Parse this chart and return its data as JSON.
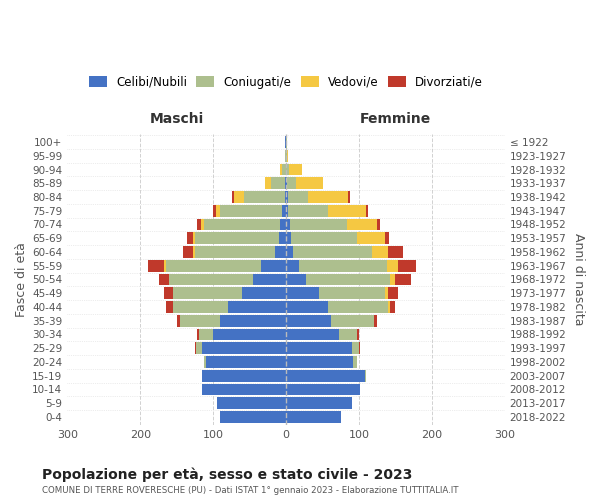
{
  "age_groups": [
    "0-4",
    "5-9",
    "10-14",
    "15-19",
    "20-24",
    "25-29",
    "30-34",
    "35-39",
    "40-44",
    "45-49",
    "50-54",
    "55-59",
    "60-64",
    "65-69",
    "70-74",
    "75-79",
    "80-84",
    "85-89",
    "90-94",
    "95-99",
    "100+"
  ],
  "birth_years": [
    "2018-2022",
    "2013-2017",
    "2008-2012",
    "2003-2007",
    "1998-2002",
    "1993-1997",
    "1988-1992",
    "1983-1987",
    "1978-1982",
    "1973-1977",
    "1968-1972",
    "1963-1967",
    "1958-1962",
    "1953-1957",
    "1948-1952",
    "1943-1947",
    "1938-1942",
    "1933-1937",
    "1928-1932",
    "1923-1927",
    "≤ 1922"
  ],
  "males_celibi": [
    90,
    95,
    115,
    115,
    110,
    115,
    100,
    90,
    80,
    60,
    45,
    35,
    15,
    10,
    8,
    5,
    2,
    1,
    0,
    0,
    1
  ],
  "males_coniugati": [
    0,
    0,
    0,
    0,
    2,
    8,
    20,
    55,
    75,
    95,
    115,
    130,
    110,
    115,
    105,
    85,
    55,
    20,
    5,
    1,
    0
  ],
  "males_vedovi": [
    0,
    0,
    0,
    0,
    0,
    0,
    0,
    0,
    0,
    0,
    1,
    2,
    2,
    3,
    4,
    6,
    15,
    8,
    3,
    0,
    0
  ],
  "males_divorziati": [
    0,
    0,
    0,
    0,
    0,
    2,
    2,
    5,
    10,
    12,
    13,
    22,
    15,
    8,
    5,
    4,
    2,
    0,
    0,
    0,
    0
  ],
  "females_nubili": [
    75,
    90,
    102,
    108,
    92,
    90,
    72,
    62,
    58,
    45,
    28,
    18,
    10,
    7,
    5,
    3,
    2,
    1,
    0,
    0,
    0
  ],
  "females_coniugate": [
    0,
    0,
    0,
    2,
    5,
    10,
    25,
    58,
    82,
    90,
    115,
    120,
    108,
    90,
    78,
    55,
    28,
    12,
    4,
    1,
    1
  ],
  "females_vedove": [
    0,
    0,
    0,
    0,
    0,
    0,
    0,
    0,
    2,
    5,
    6,
    15,
    22,
    38,
    42,
    52,
    55,
    38,
    18,
    2,
    0
  ],
  "females_divorziate": [
    0,
    0,
    0,
    0,
    0,
    2,
    3,
    5,
    8,
    14,
    22,
    25,
    20,
    6,
    4,
    3,
    2,
    0,
    0,
    0,
    0
  ],
  "color_celibi": "#4472C4",
  "color_coniugati": "#ADBF8E",
  "color_vedovi": "#F5C842",
  "color_divorziati": "#C0392B",
  "legend_labels": [
    "Celibi/Nubili",
    "Coniugati/e",
    "Vedovi/e",
    "Divorziati/e"
  ],
  "title": "Popolazione per età, sesso e stato civile - 2023",
  "subtitle": "COMUNE DI TERRE ROVERESCHE (PU) - Dati ISTAT 1° gennaio 2023 - Elaborazione TUTTITALIA.IT",
  "label_maschi": "Maschi",
  "label_femmine": "Femmine",
  "ylabel_left": "Fasce di età",
  "ylabel_right": "Anni di nascita",
  "xlim": 300,
  "bg_color": "#FFFFFF",
  "grid_color": "#CCCCCC"
}
